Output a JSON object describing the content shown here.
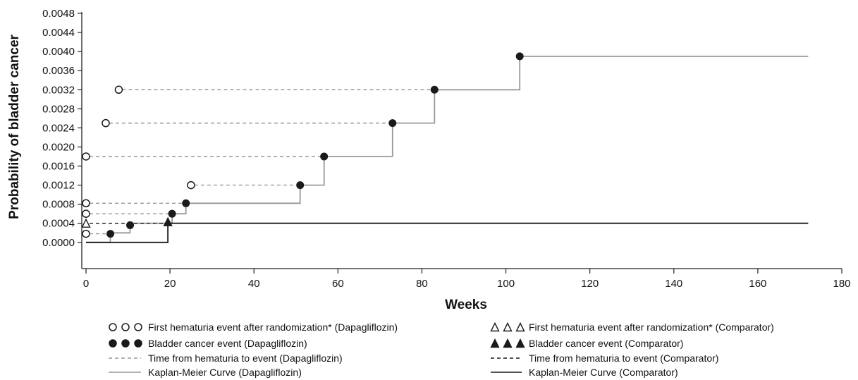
{
  "chart_data": {
    "type": "line",
    "xlabel": "Weeks",
    "ylabel": "Probability of bladder cancer",
    "xlim": [
      0,
      180
    ],
    "ylim": [
      -0.00055,
      0.0048
    ],
    "x_ticks": [
      "0",
      "20",
      "40",
      "60",
      "80",
      "100",
      "120",
      "140",
      "160",
      "180"
    ],
    "y_ticks": [
      "0.0000",
      "0.0004",
      "0.0008",
      "0.0012",
      "0.0016",
      "0.0020",
      "0.0024",
      "0.0028",
      "0.0032",
      "0.0036",
      "0.0040",
      "0.0044",
      "0.0048"
    ],
    "grid": false,
    "legend_position": "bottom",
    "colors": {
      "dapagliflozin": "#999999",
      "comparator": "#1a1a1a",
      "marker": "#1a1a1a"
    },
    "series": [
      {
        "name": "Kaplan-Meier Curve (Dapagliflozin)",
        "points": [
          [
            0,
            0
          ],
          [
            5.8,
            0
          ],
          [
            5.8,
            0.0002
          ],
          [
            10.5,
            0.0002
          ],
          [
            10.5,
            0.0004
          ],
          [
            20.5,
            0.0004
          ],
          [
            20.5,
            0.0006
          ],
          [
            23.8,
            0.0006
          ],
          [
            23.8,
            0.00082
          ],
          [
            51,
            0.00082
          ],
          [
            51,
            0.0012
          ],
          [
            56.7,
            0.0012
          ],
          [
            56.7,
            0.0018
          ],
          [
            73,
            0.0018
          ],
          [
            73,
            0.0025
          ],
          [
            83,
            0.0025
          ],
          [
            83,
            0.0032
          ],
          [
            103.3,
            0.0032
          ],
          [
            103.3,
            0.0039
          ],
          [
            172,
            0.0039
          ]
        ]
      },
      {
        "name": "Kaplan-Meier Curve (Comparator)",
        "points": [
          [
            0,
            0
          ],
          [
            5.8,
            0
          ],
          [
            5.8,
            -0.0
          ],
          [
            19.5,
            -0.0
          ],
          [
            19.5,
            0.0004
          ],
          [
            172,
            0.0004
          ]
        ]
      }
    ],
    "dapagliflozin_events": [
      {
        "hematuria": 0,
        "cancer": 5.8,
        "y": 0.00018
      },
      {
        "hematuria": null,
        "cancer": 10.5,
        "y": 0.00036
      },
      {
        "hematuria": 0,
        "cancer": 20.5,
        "y": 0.0006
      },
      {
        "hematuria": 0,
        "cancer": 23.8,
        "y": 0.00082
      },
      {
        "hematuria": 25,
        "cancer": 51,
        "y": 0.0012
      },
      {
        "hematuria": 0,
        "cancer": 56.7,
        "y": 0.0018
      },
      {
        "hematuria": 4.7,
        "cancer": 73,
        "y": 0.0025
      },
      {
        "hematuria": 7.8,
        "cancer": 83,
        "y": 0.0032
      },
      {
        "hematuria": null,
        "cancer": 103.3,
        "y": 0.0039
      }
    ],
    "comparator_events": [
      {
        "hematuria": 0,
        "cancer": 19.5,
        "y": 0.0004
      }
    ],
    "legend": [
      {
        "label": "First hematuria event after randomization* (Dapagliflozin)",
        "symbol": "open-circle"
      },
      {
        "label": "Bladder cancer event (Dapagliflozin)",
        "symbol": "filled-circle"
      },
      {
        "label": "Time from hematuria to event (Dapagliflozin)",
        "symbol": "dash-gray"
      },
      {
        "label": "Kaplan-Meier Curve (Dapagliflozin)",
        "symbol": "line-gray"
      },
      {
        "label": "First hematuria event after randomization* (Comparator)",
        "symbol": "open-triangle"
      },
      {
        "label": "Bladder cancer event (Comparator)",
        "symbol": "filled-triangle"
      },
      {
        "label": "Time from hematuria to event (Comparator)",
        "symbol": "dash-black"
      },
      {
        "label": "Kaplan-Meier Curve (Comparator)",
        "symbol": "line-black"
      }
    ]
  }
}
